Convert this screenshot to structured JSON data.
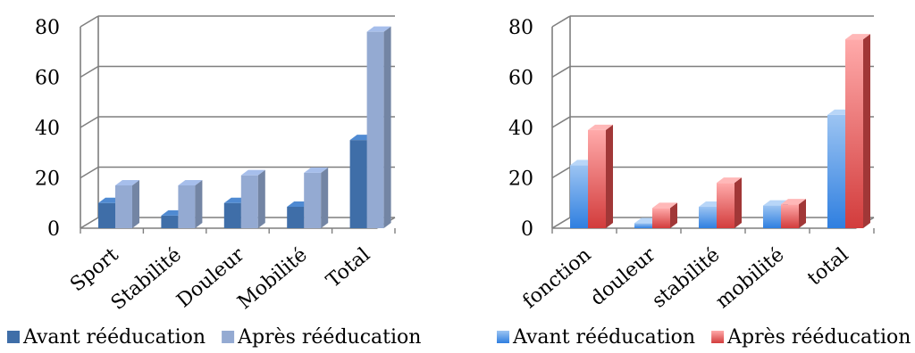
{
  "colors": {
    "avant_left": "#3f6ea8",
    "apres_left": "#94aad2",
    "avant_right": "#4a8fe0",
    "apres_right": "#e04d4d",
    "grid": "#7f7f7f",
    "axis": "#7f7f7f"
  },
  "chart_data": [
    {
      "type": "bar",
      "three_d": true,
      "categories": [
        "Sport",
        "Stabilité",
        "Douleur",
        "Mobilité",
        "Total"
      ],
      "series": [
        {
          "name": "Avant rééducation",
          "values": [
            10,
            5,
            10,
            8.5,
            35
          ]
        },
        {
          "name": "Après rééducation",
          "values": [
            17,
            17,
            21,
            22,
            78
          ]
        }
      ],
      "ylim": [
        0,
        80
      ],
      "yticks": [
        0,
        20,
        40,
        60,
        80
      ],
      "grid": true,
      "legend": "bottom"
    },
    {
      "type": "bar",
      "three_d": true,
      "categories": [
        "fonction",
        "douleur",
        "stabilité",
        "mobilité",
        "total"
      ],
      "series": [
        {
          "name": "Avant rééducation",
          "values": [
            25,
            2,
            8.5,
            9,
            45
          ]
        },
        {
          "name": "Après rééducation",
          "values": [
            39,
            8,
            18,
            9.5,
            75
          ]
        }
      ],
      "ylim": [
        0,
        80
      ],
      "yticks": [
        0,
        20,
        40,
        60,
        80
      ],
      "grid": true,
      "legend": "bottom"
    }
  ]
}
